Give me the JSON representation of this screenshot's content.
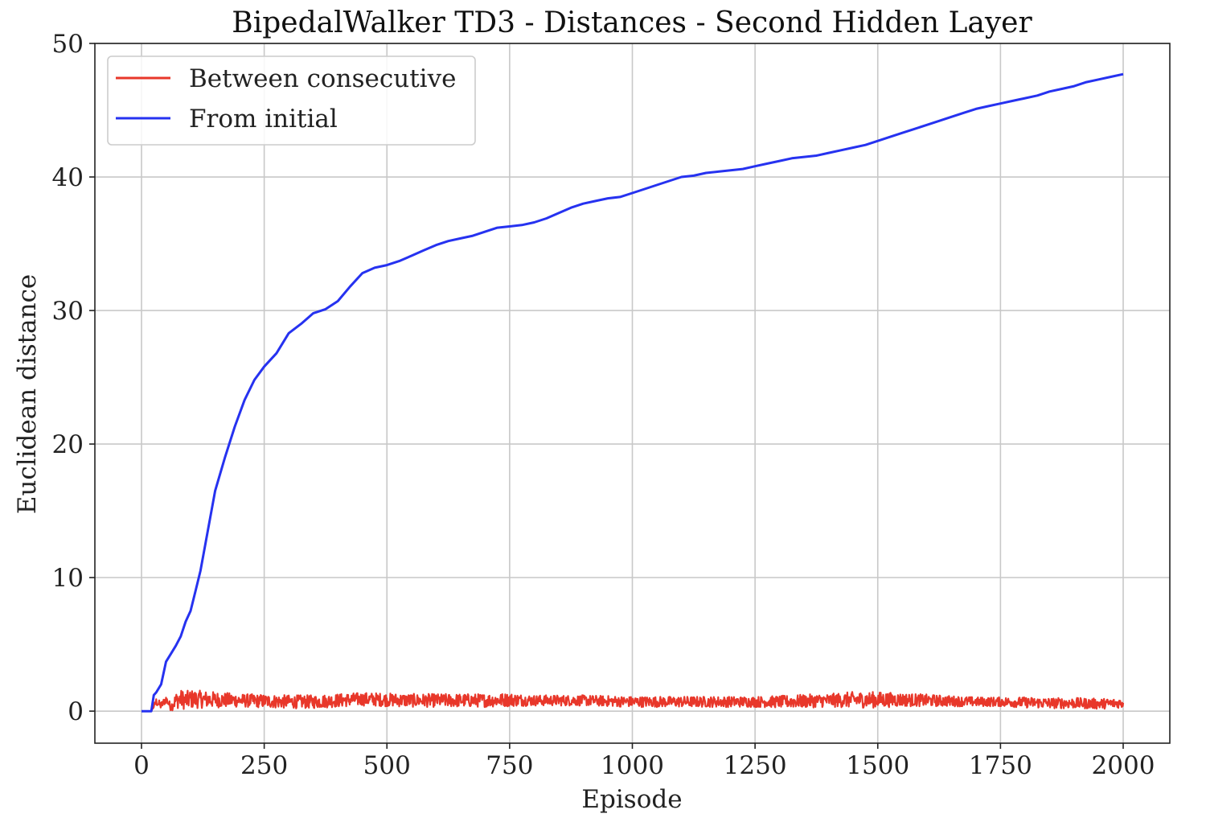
{
  "chart_data": {
    "type": "line",
    "title": "BipedalWalker TD3 - Distances - Second Hidden Layer",
    "xlabel": "Episode",
    "ylabel": "Euclidean distance",
    "xlim": [
      -95,
      2095
    ],
    "ylim": [
      -2.4,
      50
    ],
    "xticks": [
      0,
      250,
      500,
      750,
      1000,
      1250,
      1500,
      1750,
      2000
    ],
    "yticks": [
      0,
      10,
      20,
      30,
      40,
      50
    ],
    "grid": true,
    "legend": "top-left",
    "series": [
      {
        "name": "Between consecutive",
        "color": "#e8372a",
        "noisy": true,
        "x": [
          0,
          20,
          30,
          40,
          50,
          60,
          70,
          80,
          90,
          100,
          150,
          200,
          250,
          300,
          350,
          400,
          450,
          500,
          550,
          600,
          650,
          700,
          750,
          800,
          850,
          900,
          950,
          1000,
          1050,
          1100,
          1150,
          1200,
          1250,
          1300,
          1350,
          1400,
          1450,
          1500,
          1550,
          1600,
          1650,
          1700,
          1750,
          1800,
          1850,
          1900,
          1950,
          2000
        ],
        "y": [
          0.0,
          0.0,
          0.7,
          0.4,
          0.9,
          0.3,
          0.8,
          0.9,
          0.8,
          0.9,
          0.85,
          0.8,
          0.75,
          0.7,
          0.7,
          0.8,
          0.9,
          0.85,
          0.8,
          0.8,
          0.8,
          0.8,
          0.85,
          0.8,
          0.8,
          0.8,
          0.75,
          0.7,
          0.7,
          0.7,
          0.7,
          0.7,
          0.7,
          0.7,
          0.75,
          0.8,
          0.85,
          0.85,
          0.85,
          0.8,
          0.75,
          0.7,
          0.7,
          0.65,
          0.6,
          0.6,
          0.55,
          0.6
        ],
        "noise_amplitude": [
          0.0,
          0.0,
          0.3,
          0.3,
          0.3,
          0.3,
          0.6,
          0.7,
          0.7,
          0.7,
          0.6,
          0.5,
          0.5,
          0.5,
          0.5,
          0.5,
          0.5,
          0.5,
          0.5,
          0.5,
          0.5,
          0.5,
          0.5,
          0.4,
          0.4,
          0.4,
          0.4,
          0.4,
          0.4,
          0.4,
          0.4,
          0.4,
          0.4,
          0.45,
          0.5,
          0.5,
          0.6,
          0.6,
          0.5,
          0.45,
          0.4,
          0.35,
          0.35,
          0.4,
          0.4,
          0.4,
          0.4,
          0.35
        ]
      },
      {
        "name": "From initial",
        "color": "#2632f0",
        "noisy": false,
        "x": [
          0,
          20,
          25,
          30,
          40,
          50,
          60,
          70,
          80,
          90,
          100,
          110,
          120,
          130,
          140,
          150,
          170,
          190,
          210,
          230,
          250,
          275,
          300,
          325,
          350,
          375,
          400,
          425,
          450,
          475,
          500,
          525,
          550,
          575,
          600,
          625,
          650,
          675,
          700,
          725,
          750,
          775,
          800,
          825,
          850,
          875,
          900,
          925,
          950,
          975,
          1000,
          1025,
          1050,
          1075,
          1100,
          1125,
          1150,
          1175,
          1200,
          1225,
          1250,
          1275,
          1300,
          1325,
          1350,
          1375,
          1400,
          1425,
          1450,
          1475,
          1500,
          1525,
          1550,
          1575,
          1600,
          1625,
          1650,
          1675,
          1700,
          1725,
          1750,
          1775,
          1800,
          1825,
          1850,
          1875,
          1900,
          1925,
          1950,
          1975,
          2000
        ],
        "y": [
          0.0,
          0.0,
          1.2,
          1.4,
          2.0,
          3.7,
          4.3,
          4.9,
          5.6,
          6.7,
          7.5,
          9.0,
          10.5,
          12.5,
          14.5,
          16.5,
          19.0,
          21.3,
          23.3,
          24.8,
          25.8,
          26.8,
          28.3,
          29.0,
          29.8,
          30.1,
          30.7,
          31.8,
          32.8,
          33.2,
          33.4,
          33.7,
          34.1,
          34.5,
          34.9,
          35.2,
          35.4,
          35.6,
          35.9,
          36.2,
          36.3,
          36.4,
          36.6,
          36.9,
          37.3,
          37.7,
          38.0,
          38.2,
          38.4,
          38.5,
          38.8,
          39.1,
          39.4,
          39.7,
          40.0,
          40.1,
          40.3,
          40.4,
          40.5,
          40.6,
          40.8,
          41.0,
          41.2,
          41.4,
          41.5,
          41.6,
          41.8,
          42.0,
          42.2,
          42.4,
          42.7,
          43.0,
          43.3,
          43.6,
          43.9,
          44.2,
          44.5,
          44.8,
          45.1,
          45.3,
          45.5,
          45.7,
          45.9,
          46.1,
          46.4,
          46.6,
          46.8,
          47.1,
          47.3,
          47.5,
          47.7
        ]
      }
    ]
  }
}
